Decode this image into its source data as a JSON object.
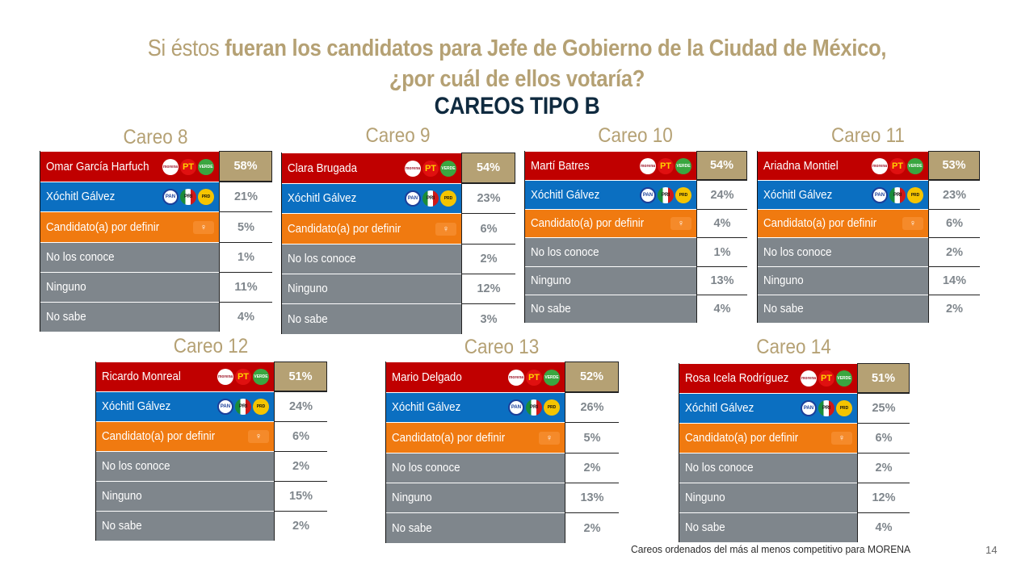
{
  "header": {
    "title_light": "Si éstos",
    "title_bold": "fueran los candidatos para Jefe de Gobierno de la Ciudad de México,",
    "title_line2": "¿por cuál de ellos votaría?",
    "subtitle": "CAREOS TIPO B"
  },
  "colors": {
    "gold": "#b5a174",
    "navy": "#0f2a3f",
    "morena_row": "#c00000",
    "va_por_mexico_row": "#0b6fc1",
    "mc_row": "#f07a10",
    "other_row": "#7f868c"
  },
  "logo_text": {
    "morena": "morena",
    "pt": "PT",
    "verde": "VERDE",
    "pan": "PAN",
    "pri": "PRI",
    "prd": "PRD",
    "mc": "MC"
  },
  "chart_data": [
    {
      "type": "table",
      "title": "Careo 8",
      "categories": [
        "Omar García Harfuch",
        "Xóchitl Gálvez",
        "Candidato(a) por definir",
        "No los conoce",
        "Ninguno",
        "No sabe"
      ],
      "values": [
        "58%",
        "21%",
        "5%",
        "1%",
        "11%",
        "4%"
      ]
    },
    {
      "type": "table",
      "title": "Careo 9",
      "categories": [
        "Clara Brugada",
        "Xóchitl Gálvez",
        "Candidato(a) por definir",
        "No los conoce",
        "Ninguno",
        "No sabe"
      ],
      "values": [
        "54%",
        "23%",
        "6%",
        "2%",
        "12%",
        "3%"
      ]
    },
    {
      "type": "table",
      "title": "Careo 10",
      "categories": [
        "Martí Batres",
        "Xóchitl Gálvez",
        "Candidato(a) por definir",
        "No los conoce",
        "Ninguno",
        "No sabe"
      ],
      "values": [
        "54%",
        "24%",
        "4%",
        "1%",
        "13%",
        "4%"
      ]
    },
    {
      "type": "table",
      "title": "Careo 11",
      "categories": [
        "Ariadna Montiel",
        "Xóchitl Gálvez",
        "Candidato(a) por definir",
        "No los conoce",
        "Ninguno",
        "No sabe"
      ],
      "values": [
        "53%",
        "23%",
        "6%",
        "2%",
        "14%",
        "2%"
      ]
    },
    {
      "type": "table",
      "title": "Careo 12",
      "categories": [
        "Ricardo Monreal",
        "Xóchitl Gálvez",
        "Candidato(a) por definir",
        "No los conoce",
        "Ninguno",
        "No sabe"
      ],
      "values": [
        "51%",
        "24%",
        "6%",
        "2%",
        "15%",
        "2%"
      ]
    },
    {
      "type": "table",
      "title": "Careo 13",
      "categories": [
        "Mario Delgado",
        "Xóchitl Gálvez",
        "Candidato(a) por definir",
        "No los conoce",
        "Ninguno",
        "No sabe"
      ],
      "values": [
        "52%",
        "26%",
        "5%",
        "2%",
        "13%",
        "2%"
      ]
    },
    {
      "type": "table",
      "title": "Careo 14",
      "categories": [
        "Rosa Icela Rodríguez",
        "Xóchitl Gálvez",
        "Candidato(a) por definir",
        "No los conoce",
        "Ninguno",
        "No sabe"
      ],
      "values": [
        "51%",
        "25%",
        "6%",
        "2%",
        "12%",
        "4%"
      ]
    }
  ],
  "footer": {
    "note": "Careos ordenados del más al menos competitivo para MORENA",
    "page_number": "14"
  }
}
